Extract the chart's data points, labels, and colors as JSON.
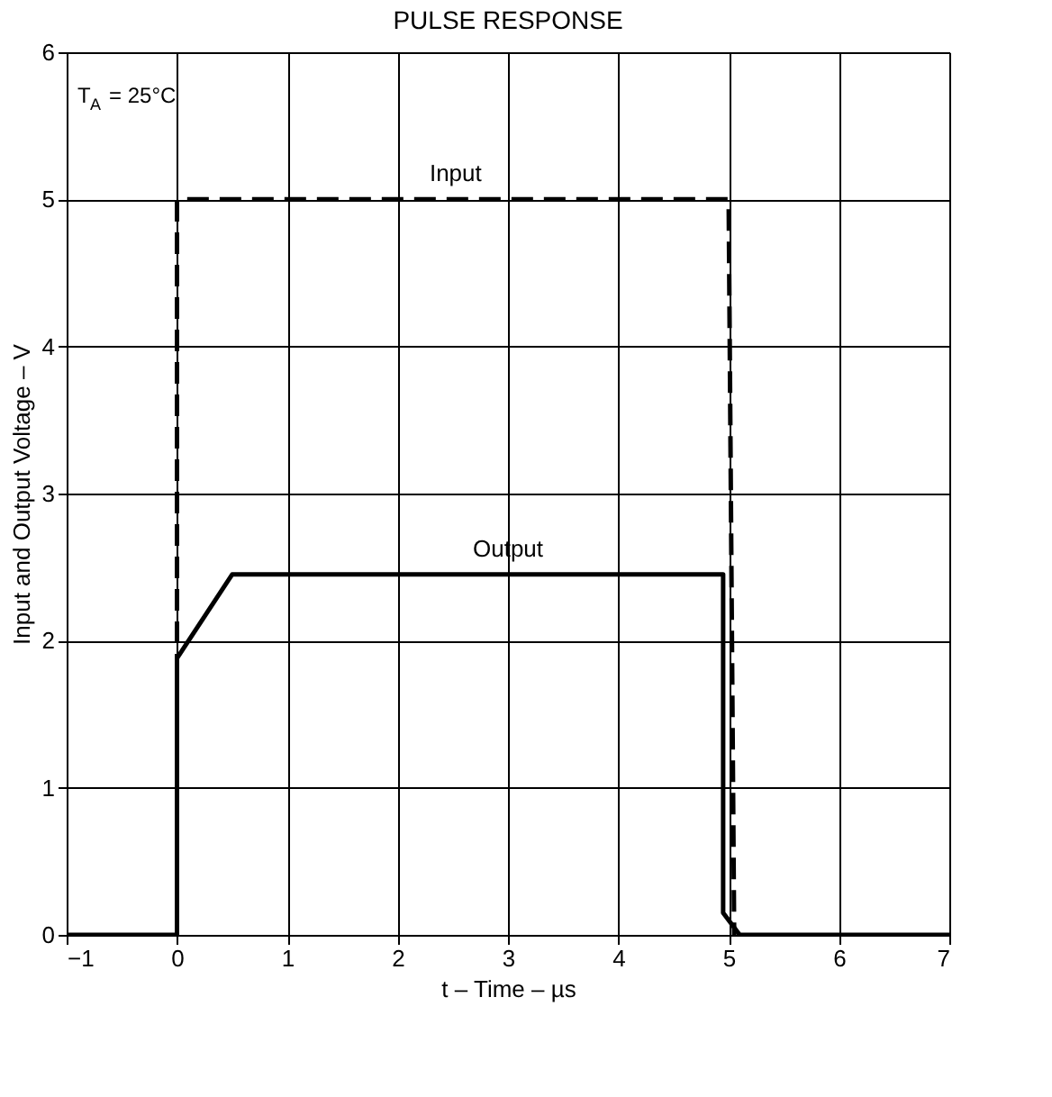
{
  "chart_data": {
    "type": "line",
    "title": "PULSE RESPONSE",
    "xlabel": "t – Time – µs",
    "ylabel": "Input and Output Voltage – V",
    "series": [
      {
        "name": "Input",
        "color": "#000000",
        "line_style": "dashed",
        "x": [
          0,
          0,
          5,
          5.05
        ],
        "values": [
          0,
          5,
          5,
          0
        ]
      },
      {
        "name": "Output",
        "color": "#000000",
        "line_style": "solid",
        "x": [
          -1,
          0,
          0,
          0.5,
          4.95,
          4.95,
          5.1,
          7
        ],
        "values": [
          0,
          0,
          1.88,
          2.45,
          2.45,
          0.15,
          0,
          0
        ]
      }
    ],
    "xlim": [
      -1,
      7
    ],
    "xticks": [
      -1,
      0,
      1,
      2,
      3,
      4,
      5,
      6,
      7
    ],
    "ylim": [
      0,
      6
    ],
    "yticks": [
      0,
      1,
      2,
      3,
      4,
      5,
      6
    ],
    "grid": true,
    "annotations": [
      "T$_{A}$ = 25°C"
    ]
  }
}
